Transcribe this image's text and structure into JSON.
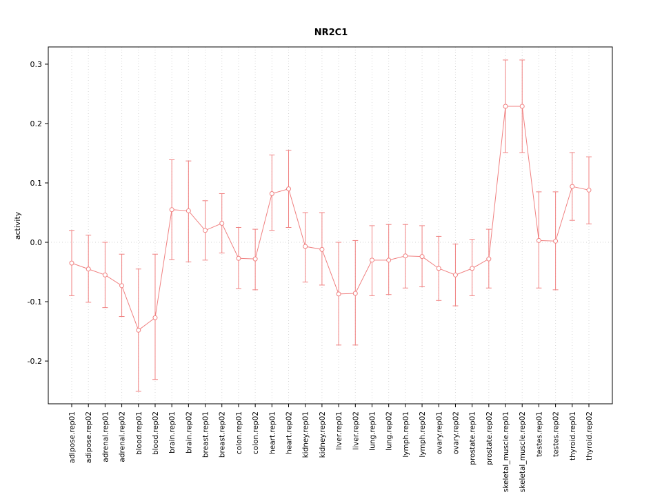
{
  "chart_data": {
    "type": "line",
    "title": "NR2C1",
    "ylabel": "activity",
    "xlabel": "",
    "ylim": [
      -0.272,
      0.329
    ],
    "yticks": [
      -0.2,
      -0.1,
      0,
      0.1,
      0.2,
      0.3
    ],
    "grid": "vertical dotted gridline per category, dotted horizontal line at y=0",
    "legend": "none",
    "colors": {
      "series": "#f08080",
      "grid": "#d6d6d6",
      "axis": "#000000",
      "background": "#ffffff"
    },
    "categories": [
      "adipose.rep01",
      "adipose.rep02",
      "adrenal.rep01",
      "adrenal.rep02",
      "blood.rep01",
      "blood.rep02",
      "brain.rep01",
      "brain.rep02",
      "breast.rep01",
      "breast.rep02",
      "colon.rep01",
      "colon.rep02",
      "heart.rep01",
      "heart.rep02",
      "kidney.rep01",
      "kidney.rep02",
      "liver.rep01",
      "liver.rep02",
      "lung.rep01",
      "lung.rep02",
      "lymph.rep01",
      "lymph.rep02",
      "ovary.rep01",
      "ovary.rep02",
      "prostate.rep01",
      "prostate.rep02",
      "skeletal_muscle.rep01",
      "skeletal_muscle.rep02",
      "testes.rep01",
      "testes.rep02",
      "thyroid.rep01",
      "thyroid.rep02"
    ],
    "series": [
      {
        "name": "NR2C1 activity",
        "values": [
          -0.035,
          -0.045,
          -0.055,
          -0.073,
          -0.148,
          -0.127,
          0.055,
          0.053,
          0.02,
          0.032,
          -0.027,
          -0.028,
          0.082,
          0.09,
          -0.007,
          -0.012,
          -0.087,
          -0.086,
          -0.03,
          -0.03,
          -0.023,
          -0.024,
          -0.044,
          -0.055,
          -0.044,
          -0.028,
          0.229,
          0.229,
          0.003,
          0.002,
          0.094,
          0.088
        ],
        "ci_high": [
          0.02,
          0.012,
          0.0,
          -0.02,
          -0.045,
          -0.02,
          0.139,
          0.137,
          0.07,
          0.082,
          0.025,
          0.022,
          0.147,
          0.155,
          0.05,
          0.05,
          0.0,
          0.003,
          0.028,
          0.03,
          0.03,
          0.028,
          0.01,
          -0.003,
          0.005,
          0.022,
          0.307,
          0.307,
          0.085,
          0.085,
          0.151,
          0.144
        ],
        "ci_low": [
          -0.09,
          -0.101,
          -0.11,
          -0.125,
          -0.251,
          -0.231,
          -0.029,
          -0.033,
          -0.03,
          -0.018,
          -0.078,
          -0.08,
          0.02,
          0.025,
          -0.067,
          -0.072,
          -0.173,
          -0.173,
          -0.09,
          -0.088,
          -0.077,
          -0.075,
          -0.098,
          -0.107,
          -0.09,
          -0.077,
          0.151,
          0.151,
          -0.077,
          -0.08,
          0.037,
          0.031
        ]
      }
    ]
  }
}
